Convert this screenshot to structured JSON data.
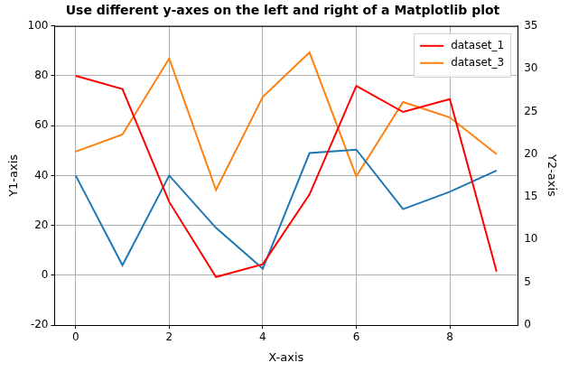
{
  "chart_data": {
    "type": "line",
    "title": "Use different y-axes on the left and right of a Matplotlib plot",
    "xlabel": "X-axis",
    "ylabel": "Y1-axis",
    "y2label": "Y2-axis",
    "x": [
      0,
      1,
      2,
      3,
      4,
      5,
      6,
      7,
      8,
      9
    ],
    "xlim": [
      -0.45,
      9.45
    ],
    "xticks": [
      0,
      2,
      4,
      6,
      8
    ],
    "ylim": [
      -20,
      100
    ],
    "yticks": [
      -20,
      0,
      20,
      40,
      60,
      80,
      100
    ],
    "y2lim": [
      0,
      35
    ],
    "y2ticks": [
      0,
      5,
      10,
      15,
      20,
      25,
      30,
      35
    ],
    "grid": true,
    "legend": "upper right",
    "series": [
      {
        "name": "dataset_1",
        "color": "#ff0000",
        "values": [
          80,
          74.7,
          29.4,
          -0.7,
          4.4,
          32.4,
          76,
          65.5,
          70.7,
          1.5
        ]
      },
      {
        "color": "#1f77b4",
        "values": [
          40,
          4,
          40,
          19,
          2.6,
          49,
          50.4,
          26.5,
          33.5,
          42
        ]
      },
      {
        "name": "dataset_3",
        "color": "#ff7f0e",
        "axis": "y2",
        "values": [
          20.3,
          22.3,
          31.2,
          15.8,
          26.7,
          31.9,
          17.4,
          26.1,
          24.3,
          20
        ]
      }
    ]
  }
}
